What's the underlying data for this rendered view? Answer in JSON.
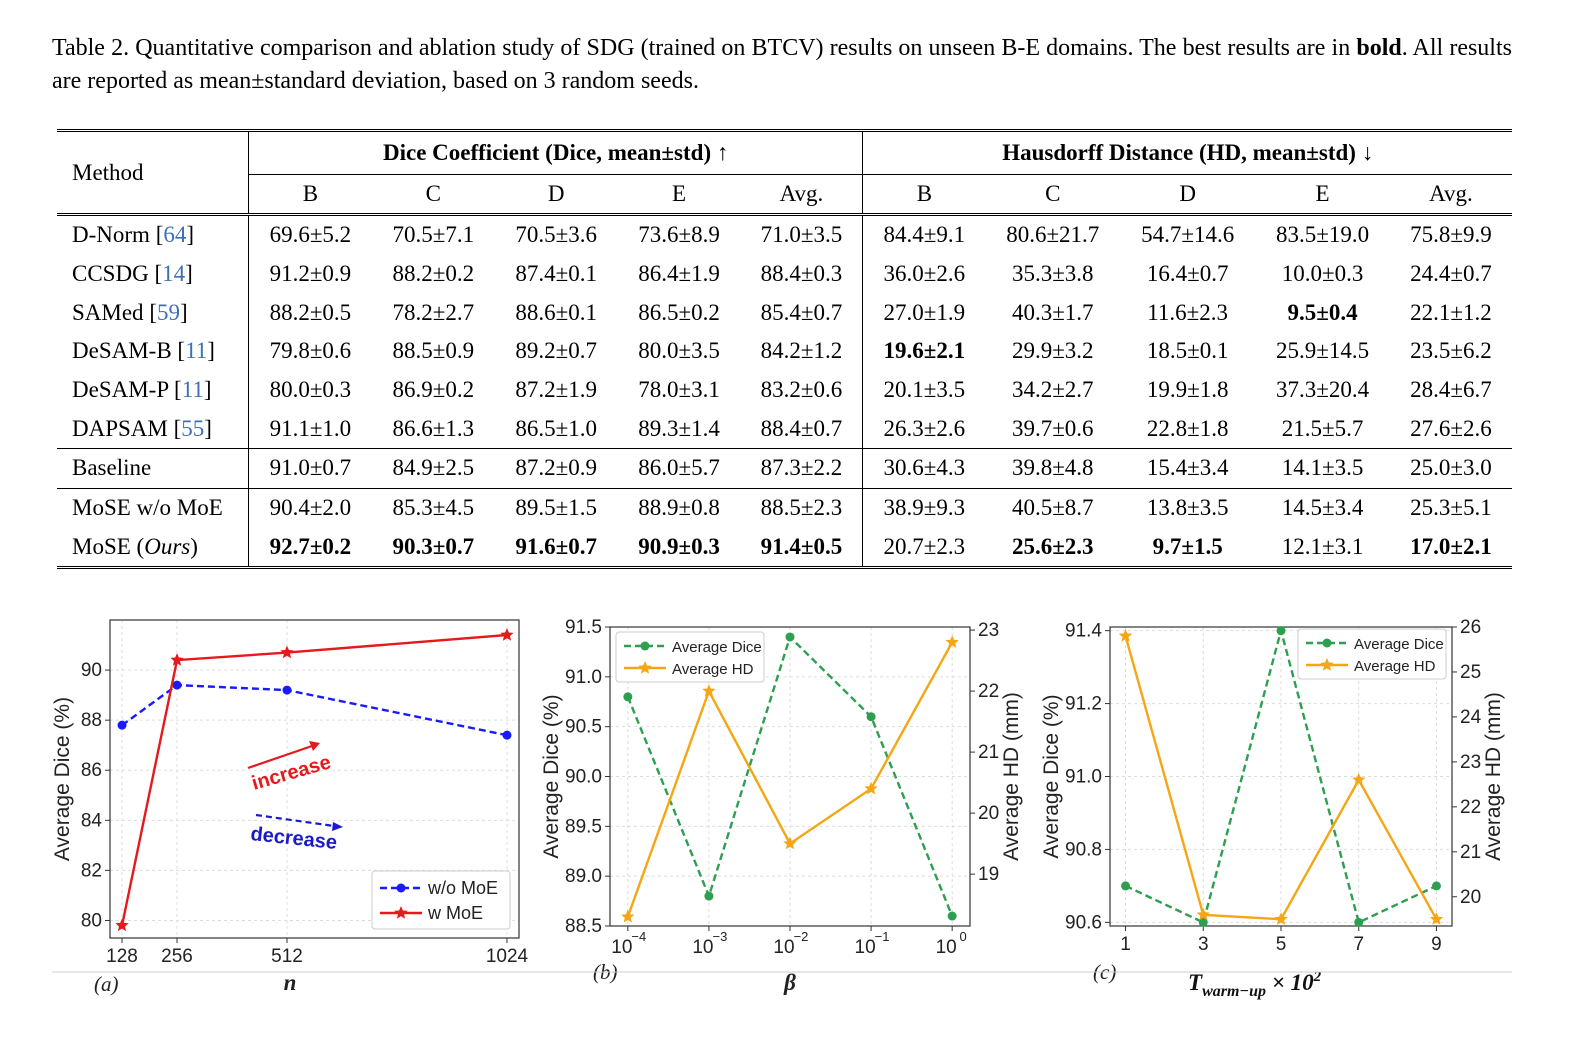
{
  "caption": {
    "text1": "Table 2. Quantitative comparison and ablation study of SDG (trained on BTCV) results on unseen B-E domains. The best results are in",
    "bold": "bold",
    "text2": ". All results are reported as mean±standard deviation, based on 3 random seeds."
  },
  "table": {
    "method_header": "Method",
    "dice_header": "Dice Coefficient (Dice, mean±std) ↑",
    "hd_header": "Hausdorff Distance (HD, mean±std) ↓",
    "subcols": [
      "B",
      "C",
      "D",
      "E",
      "Avg."
    ],
    "rows": [
      {
        "name": "D-Norm",
        "cite": "64",
        "cells": [
          "69.6±5.2",
          "70.5±7.1",
          "70.5±3.6",
          "73.6±8.9",
          "71.0±3.5",
          "84.4±9.1",
          "80.6±21.7",
          "54.7±14.6",
          "83.5±19.0",
          "75.8±9.9"
        ],
        "bold": []
      },
      {
        "name": "CCSDG",
        "cite": "14",
        "cells": [
          "91.2±0.9",
          "88.2±0.2",
          "87.4±0.1",
          "86.4±1.9",
          "88.4±0.3",
          "36.0±2.6",
          "35.3±3.8",
          "16.4±0.7",
          "10.0±0.3",
          "24.4±0.7"
        ],
        "bold": []
      },
      {
        "name": "SAMed",
        "cite": "59",
        "cells": [
          "88.2±0.5",
          "78.2±2.7",
          "88.6±0.1",
          "86.5±0.2",
          "85.4±0.7",
          "27.0±1.9",
          "40.3±1.7",
          "11.6±2.3",
          "9.5±0.4",
          "22.1±1.2"
        ],
        "bold": [
          8
        ]
      },
      {
        "name": "DeSAM-B",
        "cite": "11",
        "cells": [
          "79.8±0.6",
          "88.5±0.9",
          "89.2±0.7",
          "80.0±3.5",
          "84.2±1.2",
          "19.6±2.1",
          "29.9±3.2",
          "18.5±0.1",
          "25.9±14.5",
          "23.5±6.2"
        ],
        "bold": [
          5
        ]
      },
      {
        "name": "DeSAM-P",
        "cite": "11",
        "cells": [
          "80.0±0.3",
          "86.9±0.2",
          "87.2±1.9",
          "78.0±3.1",
          "83.2±0.6",
          "20.1±3.5",
          "34.2±2.7",
          "19.9±1.8",
          "37.3±20.4",
          "28.4±6.7"
        ],
        "bold": []
      },
      {
        "name": "DAPSAM",
        "cite": "55",
        "cells": [
          "91.1±1.0",
          "86.6±1.3",
          "86.5±1.0",
          "89.3±1.4",
          "88.4±0.7",
          "26.3±2.6",
          "39.7±0.6",
          "22.8±1.8",
          "21.5±5.7",
          "27.6±2.6"
        ],
        "bold": []
      },
      {
        "name": "Baseline",
        "cite": "",
        "cells": [
          "91.0±0.7",
          "84.9±2.5",
          "87.2±0.9",
          "86.0±5.7",
          "87.3±2.2",
          "30.6±4.3",
          "39.8±4.8",
          "15.4±3.4",
          "14.1±3.5",
          "25.0±3.0"
        ],
        "bold": []
      },
      {
        "name": "MoSE w/o MoE",
        "cite": "",
        "cells": [
          "90.4±2.0",
          "85.3±4.5",
          "89.5±1.5",
          "88.9±0.8",
          "88.5±2.3",
          "38.9±9.3",
          "40.5±8.7",
          "13.8±3.5",
          "14.5±3.4",
          "25.3±5.1"
        ],
        "bold": []
      },
      {
        "name": "MoSE (",
        "name_it": "Ours",
        "name_end": ")",
        "cite": "",
        "cells": [
          "92.7±0.2",
          "90.3±0.7",
          "91.6±0.7",
          "90.9±0.3",
          "91.4±0.5",
          "20.7±2.3",
          "25.6±2.3",
          "9.7±1.5",
          "12.1±3.1",
          "17.0±2.1"
        ],
        "bold": [
          0,
          1,
          2,
          3,
          4,
          6,
          7,
          9
        ]
      }
    ]
  },
  "chart_data": [
    {
      "type": "line",
      "panel_label": "(a)",
      "xlabel": "n",
      "ylabel": "Average Dice (%)",
      "x": [
        128,
        256,
        512,
        1024
      ],
      "xticks": [
        "128",
        "256",
        "512",
        "1024"
      ],
      "ylim": [
        79.3,
        92
      ],
      "yticks": [
        80,
        82,
        84,
        86,
        88,
        90
      ],
      "grid": true,
      "legend_position": "lower-right",
      "series": [
        {
          "name": "w/o MoE",
          "color": "#1a1aff",
          "dash": true,
          "marker": "circle",
          "values": [
            87.8,
            89.4,
            89.2,
            87.4
          ]
        },
        {
          "name": "w MoE",
          "color": "#e41a1c",
          "dash": false,
          "marker": "star",
          "values": [
            79.8,
            90.4,
            90.7,
            91.4
          ]
        }
      ],
      "annotations": [
        {
          "text": "increase",
          "color": "#e41a1c"
        },
        {
          "text": "decrease",
          "color": "#1a1acc"
        }
      ]
    },
    {
      "type": "line",
      "panel_label": "(b)",
      "xlabel": "β",
      "ylabel": "Average Dice (%)",
      "y2label": "Average HD (mm)",
      "x_exponents": [
        -4,
        -3,
        -2,
        -1,
        0
      ],
      "xticks": [
        "10",
        "10",
        "10",
        "10",
        "10"
      ],
      "xtick_exponents": [
        "−4",
        "−3",
        "−2",
        "−1",
        "0"
      ],
      "xscale": "log",
      "ylim": [
        88.5,
        91.5
      ],
      "yticks": [
        88.5,
        89.0,
        89.5,
        90.0,
        90.5,
        91.0,
        91.5
      ],
      "y2lim": [
        18.15,
        23.05
      ],
      "y2ticks": [
        19,
        20,
        21,
        22,
        23
      ],
      "grid": true,
      "legend_position": "upper-left",
      "series": [
        {
          "name": "Average Dice",
          "axis": "left",
          "color": "#2e9e4f",
          "dash": true,
          "marker": "circle",
          "values": [
            90.8,
            88.8,
            91.4,
            90.6,
            88.6
          ]
        },
        {
          "name": "Average HD",
          "axis": "right",
          "color": "#f5a614",
          "dash": false,
          "marker": "star",
          "values": [
            18.3,
            22.0,
            19.5,
            20.4,
            22.8
          ]
        }
      ]
    },
    {
      "type": "line",
      "panel_label": "(c)",
      "xlabel": "T",
      "xlabel_sub": "warm−up",
      "xlabel_tail": " × 10",
      "xlabel_sup": "2",
      "ylabel": "Average Dice (%)",
      "y2label": "Average HD (mm)",
      "x": [
        1,
        3,
        5,
        7,
        9
      ],
      "xticks": [
        "1",
        "3",
        "5",
        "7",
        "9"
      ],
      "ylim": [
        90.59,
        91.41
      ],
      "yticks": [
        90.6,
        90.8,
        91.0,
        91.2,
        91.4
      ],
      "y2lim": [
        19.35,
        26.0
      ],
      "y2ticks": [
        20,
        21,
        22,
        23,
        24,
        25,
        26
      ],
      "grid": true,
      "legend_position": "upper-right",
      "series": [
        {
          "name": "Average Dice",
          "axis": "left",
          "color": "#2e9e4f",
          "dash": true,
          "marker": "circle",
          "values": [
            90.7,
            90.6,
            91.4,
            90.6,
            90.7
          ]
        },
        {
          "name": "Average HD",
          "axis": "right",
          "color": "#f5a614",
          "dash": false,
          "marker": "star",
          "values": [
            25.8,
            19.6,
            19.5,
            22.6,
            19.5
          ]
        }
      ]
    }
  ]
}
